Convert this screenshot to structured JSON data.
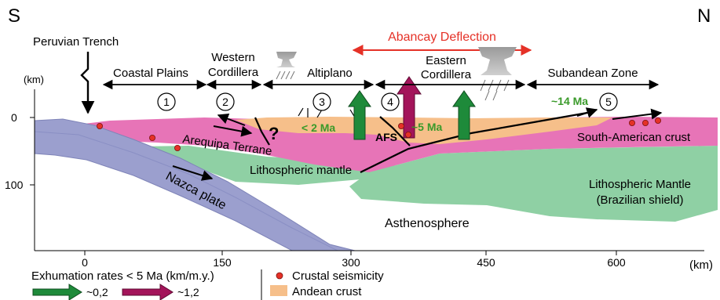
{
  "compass": {
    "left": "S",
    "right": "N"
  },
  "trench_label": "Peruvian Trench",
  "deflection_label": "Abancay Deflection",
  "zones": {
    "coastal": "Coastal Plains",
    "western_1": "Western",
    "western_2": "Cordillera",
    "altiplano": "Altiplano",
    "eastern_1": "Eastern",
    "eastern_2": "Cordillera",
    "subandean": "Subandean Zone"
  },
  "markers": [
    "1",
    "2",
    "3",
    "4",
    "5"
  ],
  "depth_axis": {
    "unit": "(km)",
    "ticks": [
      "0",
      "100"
    ]
  },
  "distance_axis": {
    "unit": "(km)",
    "ticks": [
      "0",
      "150",
      "300",
      "450",
      "600"
    ]
  },
  "regions": {
    "arequipa": "Arequipa Terrane",
    "litho_mantle": "Lithospheric mantle",
    "nazca": "Nazca plate",
    "asthenosphere": "Asthenosphere",
    "sa_crust": "South-American crust",
    "litho_mantle_2_1": "Lithospheric Mantle",
    "litho_mantle_2_2": "(Brazilian shield)"
  },
  "annotations": {
    "question": "?",
    "lt2ma": "< 2 Ma",
    "afs": "AFS",
    "m5ma": "~5 Ma",
    "m14ma": "~14 Ma"
  },
  "legend": {
    "exhumation_title": "Exhumation rates < 5 Ma (km/m.y.)",
    "green_rate": "~0,2",
    "magenta_rate": "~1,2",
    "seismicity": "Crustal seismicity",
    "andean_crust": "Andean crust"
  },
  "colors": {
    "nazca": "#9b9fce",
    "crust_pink": "#e774b7",
    "andean_orange": "#f6bf8a",
    "mantle_green": "#8fd0a4",
    "arrow_green": "#1e8a3a",
    "arrow_magenta": "#a3145a",
    "deflection_red": "#e53127",
    "seismic_red": "#e53127",
    "text_green": "#3a9a2a"
  }
}
